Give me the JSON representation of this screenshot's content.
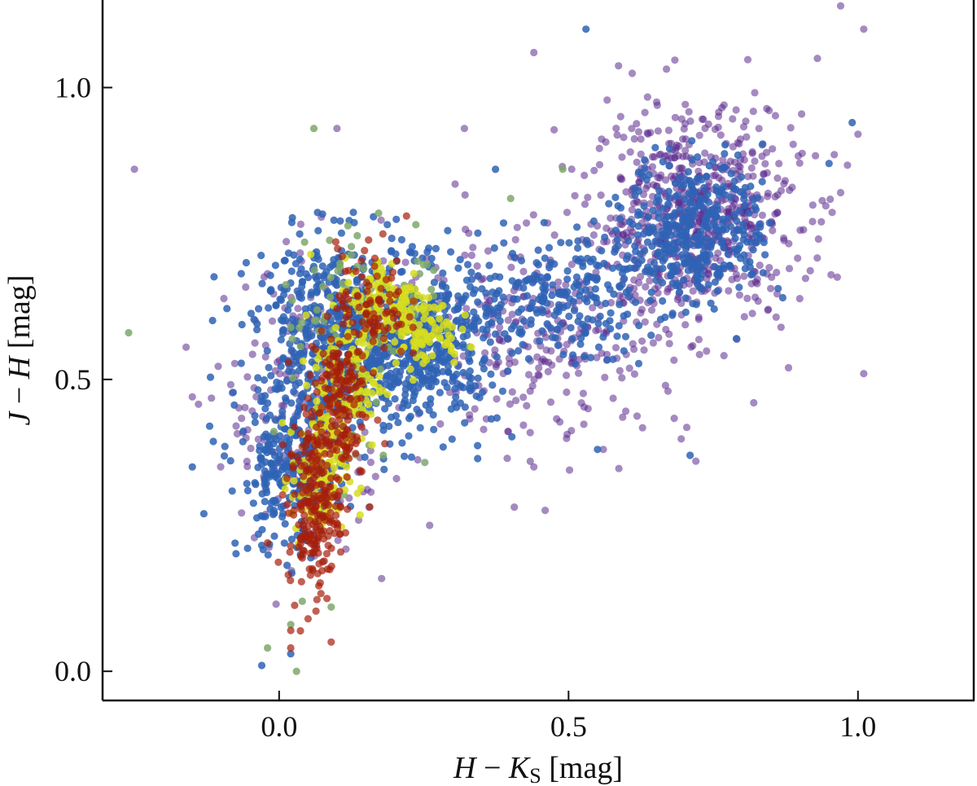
{
  "chart_data": {
    "type": "scatter",
    "title": "",
    "xlabel": {
      "var1": "H",
      "minus": " − ",
      "var2": "K",
      "sub": "S",
      "unit": " [mag]"
    },
    "ylabel": {
      "var1": "J",
      "minus": " − ",
      "var2": "H",
      "unit": " [mag]"
    },
    "xlim": [
      -0.305,
      1.2
    ],
    "ylim": [
      -0.05,
      1.15
    ],
    "xticks": [
      0.0,
      0.5,
      1.0
    ],
    "yticks": [
      0.0,
      0.5,
      1.0
    ],
    "xtick_labels": [
      "0.0",
      "0.5",
      "1.0"
    ],
    "ytick_labels": [
      "0.0",
      "0.5",
      "1.0"
    ],
    "grid": false,
    "legend": "none",
    "series": [
      {
        "name": "purple",
        "color": "#5b2a8e",
        "opacity": 0.55,
        "clusters": [
          {
            "x": 0.72,
            "y": 0.78,
            "sx": 0.09,
            "sy": 0.09,
            "n": 650
          },
          {
            "x": 0.45,
            "y": 0.58,
            "sx": 0.13,
            "sy": 0.09,
            "n": 300
          },
          {
            "x": 0.05,
            "y": 0.45,
            "sx": 0.07,
            "sy": 0.12,
            "n": 220
          }
        ],
        "points": [
          {
            "x": -0.25,
            "y": 0.86
          },
          {
            "x": -0.15,
            "y": 0.47
          },
          {
            "x": 0.1,
            "y": 0.93
          },
          {
            "x": 0.44,
            "y": 1.06
          },
          {
            "x": 0.32,
            "y": 0.93
          },
          {
            "x": 0.97,
            "y": 1.14
          },
          {
            "x": 1.01,
            "y": 1.1
          },
          {
            "x": 0.93,
            "y": 1.05
          },
          {
            "x": 1.01,
            "y": 0.51
          },
          {
            "x": 0.72,
            "y": 0.36
          },
          {
            "x": 0.56,
            "y": 0.38
          },
          {
            "x": 0.26,
            "y": 0.25
          },
          {
            "x": 0.44,
            "y": 0.35
          },
          {
            "x": 0.82,
            "y": 0.46
          },
          {
            "x": 0.88,
            "y": 0.52
          },
          {
            "x": 0.97,
            "y": 0.82
          },
          {
            "x": 1.0,
            "y": 0.92
          },
          {
            "x": 0.63,
            "y": 0.78
          }
        ]
      },
      {
        "name": "blue",
        "color": "#2f63b5",
        "opacity": 0.85,
        "clusters": [
          {
            "x": 0.02,
            "y": 0.34,
            "sx": 0.045,
            "sy": 0.07,
            "n": 280
          },
          {
            "x": 0.1,
            "y": 0.58,
            "sx": 0.07,
            "sy": 0.08,
            "n": 520
          },
          {
            "x": 0.24,
            "y": 0.56,
            "sx": 0.07,
            "sy": 0.07,
            "n": 520
          },
          {
            "x": 0.48,
            "y": 0.64,
            "sx": 0.09,
            "sy": 0.05,
            "n": 230
          },
          {
            "x": 0.72,
            "y": 0.76,
            "sx": 0.06,
            "sy": 0.06,
            "n": 380
          }
        ],
        "points": [
          {
            "x": 0.53,
            "y": 1.1
          },
          {
            "x": 0.99,
            "y": 0.94
          },
          {
            "x": 0.55,
            "y": 0.38
          },
          {
            "x": 0.71,
            "y": 0.37
          },
          {
            "x": -0.03,
            "y": 0.01
          },
          {
            "x": 0.02,
            "y": 0.03
          },
          {
            "x": -0.15,
            "y": 0.35
          },
          {
            "x": -0.12,
            "y": 0.42
          },
          {
            "x": -0.13,
            "y": 0.27
          },
          {
            "x": 0.87,
            "y": 0.64
          },
          {
            "x": 0.95,
            "y": 0.87
          },
          {
            "x": 0.79,
            "y": 0.57
          }
        ]
      },
      {
        "name": "green",
        "color": "#7ea86a",
        "opacity": 0.85,
        "clusters": [
          {
            "x": 0.1,
            "y": 0.52,
            "sx": 0.05,
            "sy": 0.12,
            "n": 60
          },
          {
            "x": 0.2,
            "y": 0.62,
            "sx": 0.06,
            "sy": 0.06,
            "n": 50
          }
        ],
        "points": [
          {
            "x": -0.26,
            "y": 0.58
          },
          {
            "x": 0.06,
            "y": 0.93
          },
          {
            "x": 0.49,
            "y": 0.86
          },
          {
            "x": 0.4,
            "y": 0.81
          },
          {
            "x": 0.03,
            "y": 0.0
          },
          {
            "x": -0.02,
            "y": 0.04
          },
          {
            "x": 0.09,
            "y": 0.11
          },
          {
            "x": 0.04,
            "y": 0.12
          },
          {
            "x": 0.02,
            "y": 0.08
          },
          {
            "x": 0.18,
            "y": 0.37
          }
        ]
      },
      {
        "name": "yellow",
        "color": "#d6dd1e",
        "opacity": 0.85,
        "clusters": [
          {
            "x": 0.07,
            "y": 0.33,
            "sx": 0.025,
            "sy": 0.06,
            "n": 130
          },
          {
            "x": 0.12,
            "y": 0.5,
            "sx": 0.03,
            "sy": 0.06,
            "n": 110
          },
          {
            "x": 0.19,
            "y": 0.63,
            "sx": 0.04,
            "sy": 0.04,
            "n": 140
          },
          {
            "x": 0.25,
            "y": 0.58,
            "sx": 0.03,
            "sy": 0.03,
            "n": 70
          }
        ],
        "points": []
      },
      {
        "name": "red",
        "color": "#a51e0c",
        "opacity": 0.7,
        "clusters": [
          {
            "x": 0.06,
            "y": 0.28,
            "sx": 0.022,
            "sy": 0.07,
            "n": 220
          },
          {
            "x": 0.1,
            "y": 0.46,
            "sx": 0.025,
            "sy": 0.07,
            "n": 170
          },
          {
            "x": 0.16,
            "y": 0.63,
            "sx": 0.03,
            "sy": 0.05,
            "n": 90
          }
        ],
        "points": [
          {
            "x": 0.09,
            "y": 0.05
          },
          {
            "x": 0.02,
            "y": 0.07
          },
          {
            "x": 0.02,
            "y": 0.04
          },
          {
            "x": 0.05,
            "y": 0.09
          },
          {
            "x": 0.22,
            "y": 0.78
          },
          {
            "x": -0.02,
            "y": 0.22
          }
        ]
      }
    ]
  }
}
